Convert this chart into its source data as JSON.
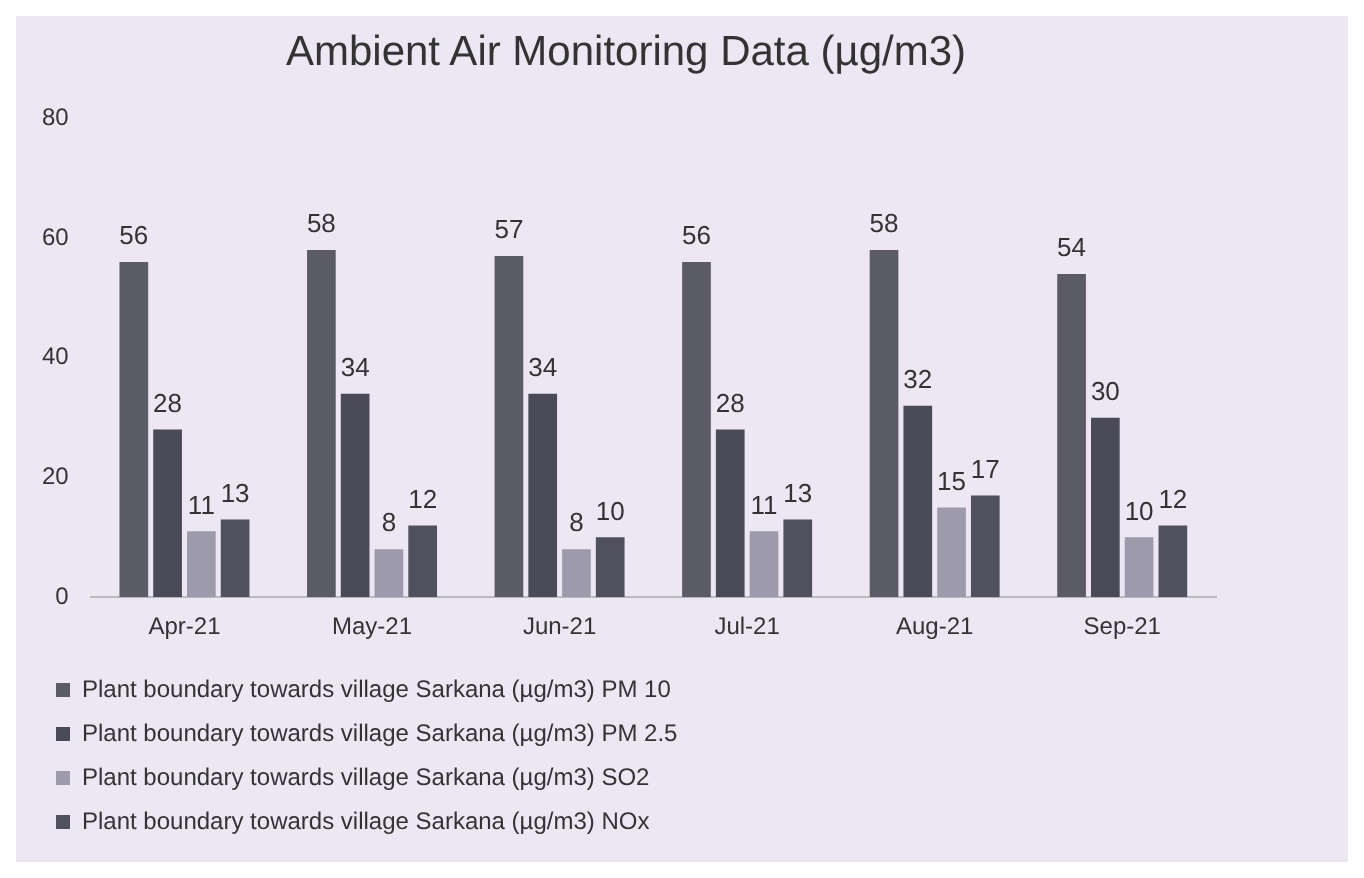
{
  "chart_data": {
    "type": "bar",
    "title": "Ambient Air Monitoring Data (µg/m3)",
    "categories": [
      "Apr-21",
      "May-21",
      "Jun-21",
      "Jul-21",
      "Aug-21",
      "Sep-21"
    ],
    "series": [
      {
        "name": "Plant boundary towards village Sarkana (µg/m3) PM 10",
        "color": "#5b5b68",
        "values": [
          56,
          58,
          57,
          56,
          58,
          54
        ]
      },
      {
        "name": "Plant boundary towards village Sarkana (µg/m3) PM 2.5",
        "color": "#4a4a58",
        "values": [
          28,
          34,
          34,
          28,
          32,
          30
        ]
      },
      {
        "name": "Plant boundary towards village Sarkana (µg/m3) SO2",
        "color": "#9d9bab",
        "values": [
          11,
          8,
          8,
          11,
          15,
          10
        ]
      },
      {
        "name": "Plant boundary towards village Sarkana (µg/m3) NOx",
        "color": "#50505e",
        "values": [
          13,
          12,
          10,
          13,
          17,
          12
        ]
      }
    ],
    "ylim": [
      0,
      80
    ],
    "yticks": [
      0,
      20,
      40,
      60,
      80
    ],
    "grid": false,
    "legend": "bottom",
    "data_labels": true
  }
}
